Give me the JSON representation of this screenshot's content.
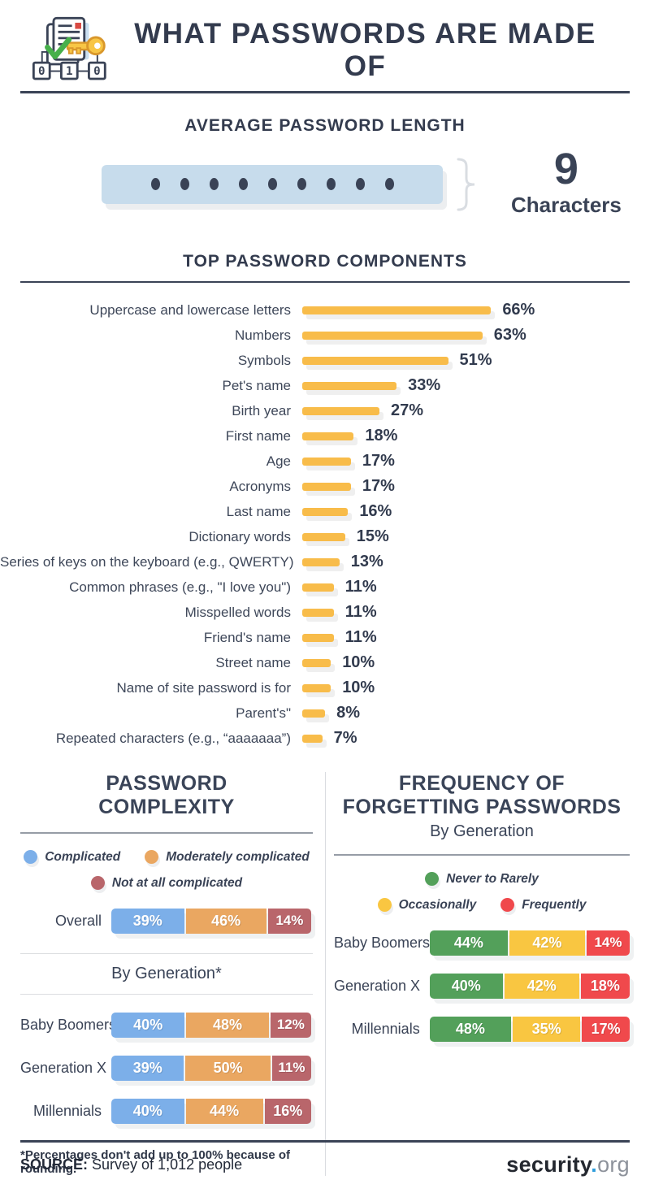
{
  "header": {
    "title": "WHAT PASSWORDS ARE MADE OF"
  },
  "avg_length": {
    "title": "AVERAGE PASSWORD LENGTH",
    "dots": 9,
    "value": "9",
    "unit": "Characters"
  },
  "components_section": {
    "title": "TOP PASSWORD COMPONENTS"
  },
  "complexity_panel": {
    "title_line1": "PASSWORD",
    "title_line2": "COMPLEXITY",
    "overall_label": "Overall",
    "by_generation_label": "By Generation*",
    "footnote": "*Percentages don't add up to 100% because of rounding."
  },
  "forgetting_panel": {
    "title_line1": "FREQUENCY OF",
    "title_line2": "FORGETTING PASSWORDS",
    "subtitle": "By Generation"
  },
  "footer": {
    "source_label": "SOURCE:",
    "source_text": " Survey of 1,012 people",
    "logo_security": "security",
    "logo_dot": ".",
    "logo_org": "org"
  },
  "colors": {
    "text_dark": "#3A4356",
    "component_bar": "#F8BC4A",
    "password_box": "#C7DCEC",
    "complicated_blue": "#7CAFE9",
    "moderately_orange": "#EAA761",
    "not_at_all_maroon": "#B9666B",
    "never_green": "#53A05A",
    "occasionally_yellow": "#F9C641",
    "frequently_red": "#F0494C",
    "logo_dot_blue": "#2D9CDB"
  },
  "chart_data": [
    {
      "type": "bar",
      "orientation": "horizontal",
      "title": "TOP PASSWORD COMPONENTS",
      "categories": [
        "Uppercase and lowercase letters",
        "Numbers",
        "Symbols",
        "Pet's name",
        "Birth year",
        "First name",
        "Age",
        "Acronyms",
        "Last name",
        "Dictionary words",
        "Series of keys on the keyboard (e.g., QWERTY)",
        "Common phrases (e.g., \"I love you\")",
        "Misspelled words",
        "Friend's name",
        "Street name",
        "Name of site password is for",
        "Parent's\"",
        "Repeated characters (e.g., “aaaaaaa”)"
      ],
      "values": [
        66,
        63,
        51,
        33,
        27,
        18,
        17,
        17,
        16,
        15,
        13,
        11,
        11,
        11,
        10,
        10,
        8,
        7
      ],
      "value_suffix": "%",
      "bar_color": "#F8BC4A",
      "xlim": [
        0,
        100
      ],
      "grid": false
    },
    {
      "type": "stacked-bar",
      "title": "PASSWORD COMPLEXITY",
      "categories": [
        "Overall",
        "Baby Boomers",
        "Generation X",
        "Millennials"
      ],
      "series": [
        {
          "name": "Complicated",
          "color": "#7CAFE9",
          "values": [
            39,
            40,
            39,
            40
          ]
        },
        {
          "name": "Moderately complicated",
          "color": "#EAA761",
          "values": [
            46,
            48,
            50,
            44
          ]
        },
        {
          "name": "Not at all complicated",
          "color": "#B9666B",
          "values": [
            14,
            12,
            11,
            16
          ]
        }
      ],
      "value_suffix": "%",
      "legend_position": "top",
      "footnote": "*Percentages don't add up to 100% because of rounding."
    },
    {
      "type": "stacked-bar",
      "title": "FREQUENCY OF FORGETTING PASSWORDS",
      "subtitle": "By Generation",
      "categories": [
        "Baby Boomers",
        "Generation X",
        "Millennials"
      ],
      "series": [
        {
          "name": "Never to Rarely",
          "color": "#53A05A",
          "values": [
            44,
            40,
            48
          ]
        },
        {
          "name": "Occasionally",
          "color": "#F9C641",
          "values": [
            42,
            42,
            35
          ]
        },
        {
          "name": "Frequently",
          "color": "#F0494C",
          "values": [
            14,
            18,
            17
          ]
        }
      ],
      "value_suffix": "%",
      "legend_position": "top"
    }
  ]
}
